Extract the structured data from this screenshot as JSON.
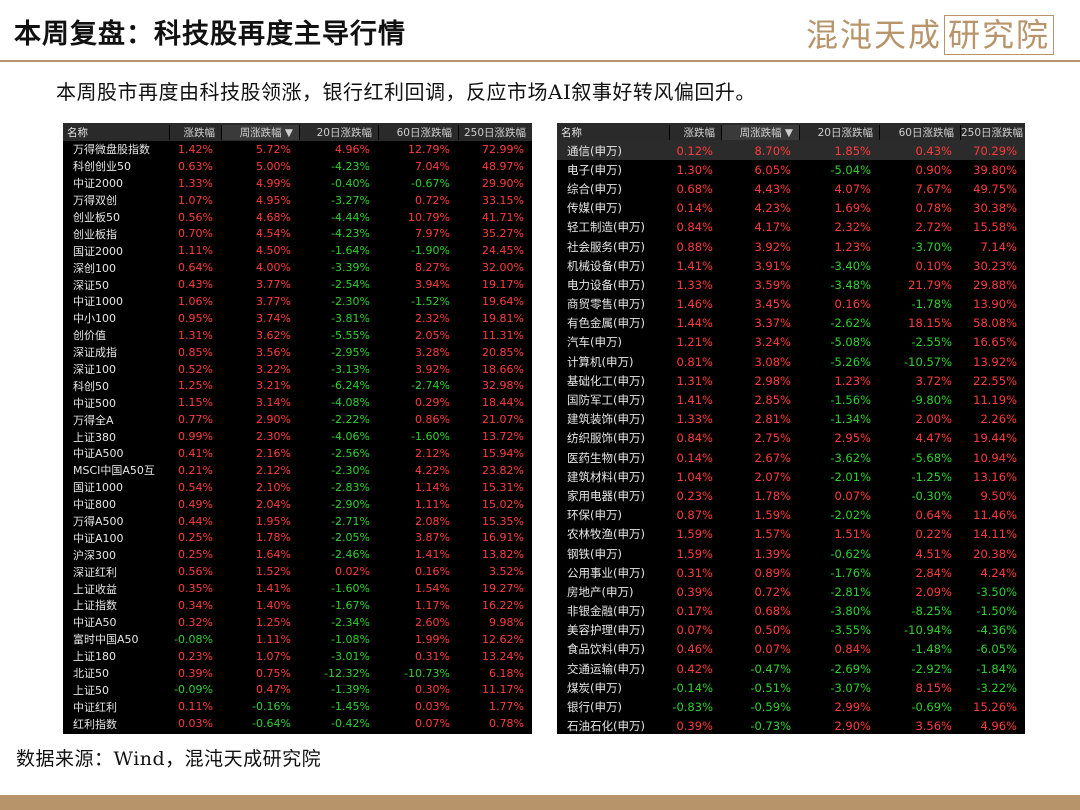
{
  "header": {
    "title": "本周复盘：科技股再度主导行情",
    "logo_text": "混沌天成",
    "logo_boxed": "研究院"
  },
  "subtitle": "本周股市再度由科技股领涨，银行红利回调，反应市场AI叙事好转风偏回升。",
  "left_table": {
    "columns": [
      "名称",
      "涨跌幅",
      "周涨跌幅 ▼",
      "20日涨跌幅",
      "60日涨跌幅",
      "250日涨跌幅"
    ],
    "rows": [
      [
        "万得微盘股指数",
        "1.42%",
        "5.72%",
        "4.96%",
        "12.79%",
        "72.99%"
      ],
      [
        "科创创业50",
        "0.63%",
        "5.00%",
        "-4.23%",
        "7.04%",
        "48.97%"
      ],
      [
        "中证2000",
        "1.33%",
        "4.99%",
        "-0.40%",
        "-0.67%",
        "29.90%"
      ],
      [
        "万得双创",
        "1.07%",
        "4.95%",
        "-3.27%",
        "0.72%",
        "33.15%"
      ],
      [
        "创业板50",
        "0.56%",
        "4.68%",
        "-4.44%",
        "10.79%",
        "41.71%"
      ],
      [
        "创业板指",
        "0.70%",
        "4.54%",
        "-4.23%",
        "7.97%",
        "35.27%"
      ],
      [
        "国证2000",
        "1.11%",
        "4.50%",
        "-1.64%",
        "-1.90%",
        "24.45%"
      ],
      [
        "深创100",
        "0.64%",
        "4.00%",
        "-3.39%",
        "8.27%",
        "32.00%"
      ],
      [
        "深证50",
        "0.43%",
        "3.77%",
        "-2.54%",
        "3.94%",
        "19.17%"
      ],
      [
        "中证1000",
        "1.06%",
        "3.77%",
        "-2.30%",
        "-1.52%",
        "19.64%"
      ],
      [
        "中小100",
        "0.95%",
        "3.74%",
        "-3.81%",
        "2.32%",
        "19.81%"
      ],
      [
        "创价值",
        "1.31%",
        "3.62%",
        "-5.55%",
        "2.05%",
        "11.31%"
      ],
      [
        "深证成指",
        "0.85%",
        "3.56%",
        "-2.95%",
        "3.28%",
        "20.85%"
      ],
      [
        "深证100",
        "0.52%",
        "3.22%",
        "-3.13%",
        "3.92%",
        "18.66%"
      ],
      [
        "科创50",
        "1.25%",
        "3.21%",
        "-6.24%",
        "-2.74%",
        "32.98%"
      ],
      [
        "中证500",
        "1.15%",
        "3.14%",
        "-4.08%",
        "0.29%",
        "18.44%"
      ],
      [
        "万得全A",
        "0.77%",
        "2.90%",
        "-2.22%",
        "0.86%",
        "21.07%"
      ],
      [
        "上证380",
        "0.99%",
        "2.30%",
        "-4.06%",
        "-1.60%",
        "13.72%"
      ],
      [
        "中证A500",
        "0.41%",
        "2.16%",
        "-2.56%",
        "2.12%",
        "15.94%"
      ],
      [
        "MSCI中国A50互",
        "0.21%",
        "2.12%",
        "-2.30%",
        "4.22%",
        "23.82%"
      ],
      [
        "国证1000",
        "0.54%",
        "2.10%",
        "-2.83%",
        "1.14%",
        "15.31%"
      ],
      [
        "中证800",
        "0.49%",
        "2.04%",
        "-2.90%",
        "1.11%",
        "15.02%"
      ],
      [
        "万得A500",
        "0.44%",
        "1.95%",
        "-2.71%",
        "2.08%",
        "15.35%"
      ],
      [
        "中证A100",
        "0.25%",
        "1.78%",
        "-2.05%",
        "3.87%",
        "16.91%"
      ],
      [
        "沪深300",
        "0.25%",
        "1.64%",
        "-2.46%",
        "1.41%",
        "13.82%"
      ],
      [
        "深证红利",
        "0.56%",
        "1.52%",
        "0.02%",
        "0.16%",
        "3.52%"
      ],
      [
        "上证收益",
        "0.35%",
        "1.41%",
        "-1.60%",
        "1.54%",
        "19.27%"
      ],
      [
        "上证指数",
        "0.34%",
        "1.40%",
        "-1.67%",
        "1.17%",
        "16.22%"
      ],
      [
        "中证A50",
        "0.32%",
        "1.25%",
        "-2.34%",
        "2.60%",
        "9.98%"
      ],
      [
        "富时中国A50",
        "-0.08%",
        "1.11%",
        "-1.08%",
        "1.99%",
        "12.62%"
      ],
      [
        "上证180",
        "0.23%",
        "1.07%",
        "-3.01%",
        "0.31%",
        "13.24%"
      ],
      [
        "北证50",
        "0.39%",
        "0.75%",
        "-12.32%",
        "-10.73%",
        "6.18%"
      ],
      [
        "上证50",
        "-0.09%",
        "0.47%",
        "-1.39%",
        "0.30%",
        "11.17%"
      ],
      [
        "中证红利",
        "0.11%",
        "-0.16%",
        "-1.45%",
        "0.03%",
        "1.77%"
      ],
      [
        "红利指数",
        "0.03%",
        "-0.64%",
        "-0.42%",
        "0.07%",
        "0.78%"
      ]
    ]
  },
  "right_table": {
    "columns": [
      "名称",
      "涨跌幅",
      "周涨跌幅 ▼",
      "20日涨跌幅",
      "60日涨跌幅",
      "250日涨跌幅"
    ],
    "rows": [
      [
        "通信(申万)",
        "0.12%",
        "8.70%",
        "1.85%",
        "0.43%",
        "70.29%"
      ],
      [
        "电子(申万)",
        "1.30%",
        "6.05%",
        "-5.04%",
        "0.90%",
        "39.80%"
      ],
      [
        "综合(申万)",
        "0.68%",
        "4.43%",
        "4.07%",
        "7.67%",
        "49.75%"
      ],
      [
        "传媒(申万)",
        "0.14%",
        "4.23%",
        "1.69%",
        "0.78%",
        "30.38%"
      ],
      [
        "轻工制造(申万)",
        "0.84%",
        "4.17%",
        "2.32%",
        "2.72%",
        "15.58%"
      ],
      [
        "社会服务(申万)",
        "0.88%",
        "3.92%",
        "1.23%",
        "-3.70%",
        "7.14%"
      ],
      [
        "机械设备(申万)",
        "1.41%",
        "3.91%",
        "-3.40%",
        "0.10%",
        "30.23%"
      ],
      [
        "电力设备(申万)",
        "1.33%",
        "3.59%",
        "-3.48%",
        "21.79%",
        "29.88%"
      ],
      [
        "商贸零售(申万)",
        "1.46%",
        "3.45%",
        "0.16%",
        "-1.78%",
        "13.90%"
      ],
      [
        "有色金属(申万)",
        "1.44%",
        "3.37%",
        "-2.62%",
        "18.15%",
        "58.08%"
      ],
      [
        "汽车(申万)",
        "1.21%",
        "3.24%",
        "-5.08%",
        "-2.55%",
        "16.65%"
      ],
      [
        "计算机(申万)",
        "0.81%",
        "3.08%",
        "-5.26%",
        "-10.57%",
        "13.92%"
      ],
      [
        "基础化工(申万)",
        "1.31%",
        "2.98%",
        "1.23%",
        "3.72%",
        "22.55%"
      ],
      [
        "国防军工(申万)",
        "1.41%",
        "2.85%",
        "-1.56%",
        "-9.80%",
        "11.19%"
      ],
      [
        "建筑装饰(申万)",
        "1.33%",
        "2.81%",
        "-1.34%",
        "2.00%",
        "2.26%"
      ],
      [
        "纺织服饰(申万)",
        "0.84%",
        "2.75%",
        "2.95%",
        "4.47%",
        "19.44%"
      ],
      [
        "医药生物(申万)",
        "0.14%",
        "2.67%",
        "-3.62%",
        "-5.68%",
        "10.94%"
      ],
      [
        "建筑材料(申万)",
        "1.04%",
        "2.07%",
        "-2.01%",
        "-1.25%",
        "13.16%"
      ],
      [
        "家用电器(申万)",
        "0.23%",
        "1.78%",
        "0.07%",
        "-0.30%",
        "9.50%"
      ],
      [
        "环保(申万)",
        "0.87%",
        "1.59%",
        "-2.02%",
        "0.64%",
        "11.46%"
      ],
      [
        "农林牧渔(申万)",
        "1.59%",
        "1.57%",
        "1.51%",
        "0.22%",
        "14.11%"
      ],
      [
        "钢铁(申万)",
        "1.59%",
        "1.39%",
        "-0.62%",
        "4.51%",
        "20.38%"
      ],
      [
        "公用事业(申万)",
        "0.31%",
        "0.89%",
        "-1.76%",
        "2.84%",
        "4.24%"
      ],
      [
        "房地产(申万)",
        "0.39%",
        "0.72%",
        "-2.81%",
        "2.09%",
        "-3.50%"
      ],
      [
        "非银金融(申万)",
        "0.17%",
        "0.68%",
        "-3.80%",
        "-8.25%",
        "-1.50%"
      ],
      [
        "美容护理(申万)",
        "0.07%",
        "0.50%",
        "-3.55%",
        "-10.94%",
        "-4.36%"
      ],
      [
        "食品饮料(申万)",
        "0.46%",
        "0.07%",
        "0.84%",
        "-1.48%",
        "-6.05%"
      ],
      [
        "交通运输(申万)",
        "0.42%",
        "-0.47%",
        "-2.69%",
        "-2.92%",
        "-1.84%"
      ],
      [
        "煤炭(申万)",
        "-0.14%",
        "-0.51%",
        "-3.07%",
        "8.15%",
        "-3.22%"
      ],
      [
        "银行(申万)",
        "-0.83%",
        "-0.59%",
        "2.99%",
        "-0.69%",
        "15.26%"
      ],
      [
        "石油石化(申万)",
        "0.39%",
        "-0.73%",
        "2.90%",
        "3.56%",
        "4.96%"
      ]
    ]
  },
  "colors": {
    "positive": "#ff3b3b",
    "negative": "#2fd02f",
    "accent": "#b8946a"
  },
  "source": "数据来源：Wind，混沌天成研究院"
}
